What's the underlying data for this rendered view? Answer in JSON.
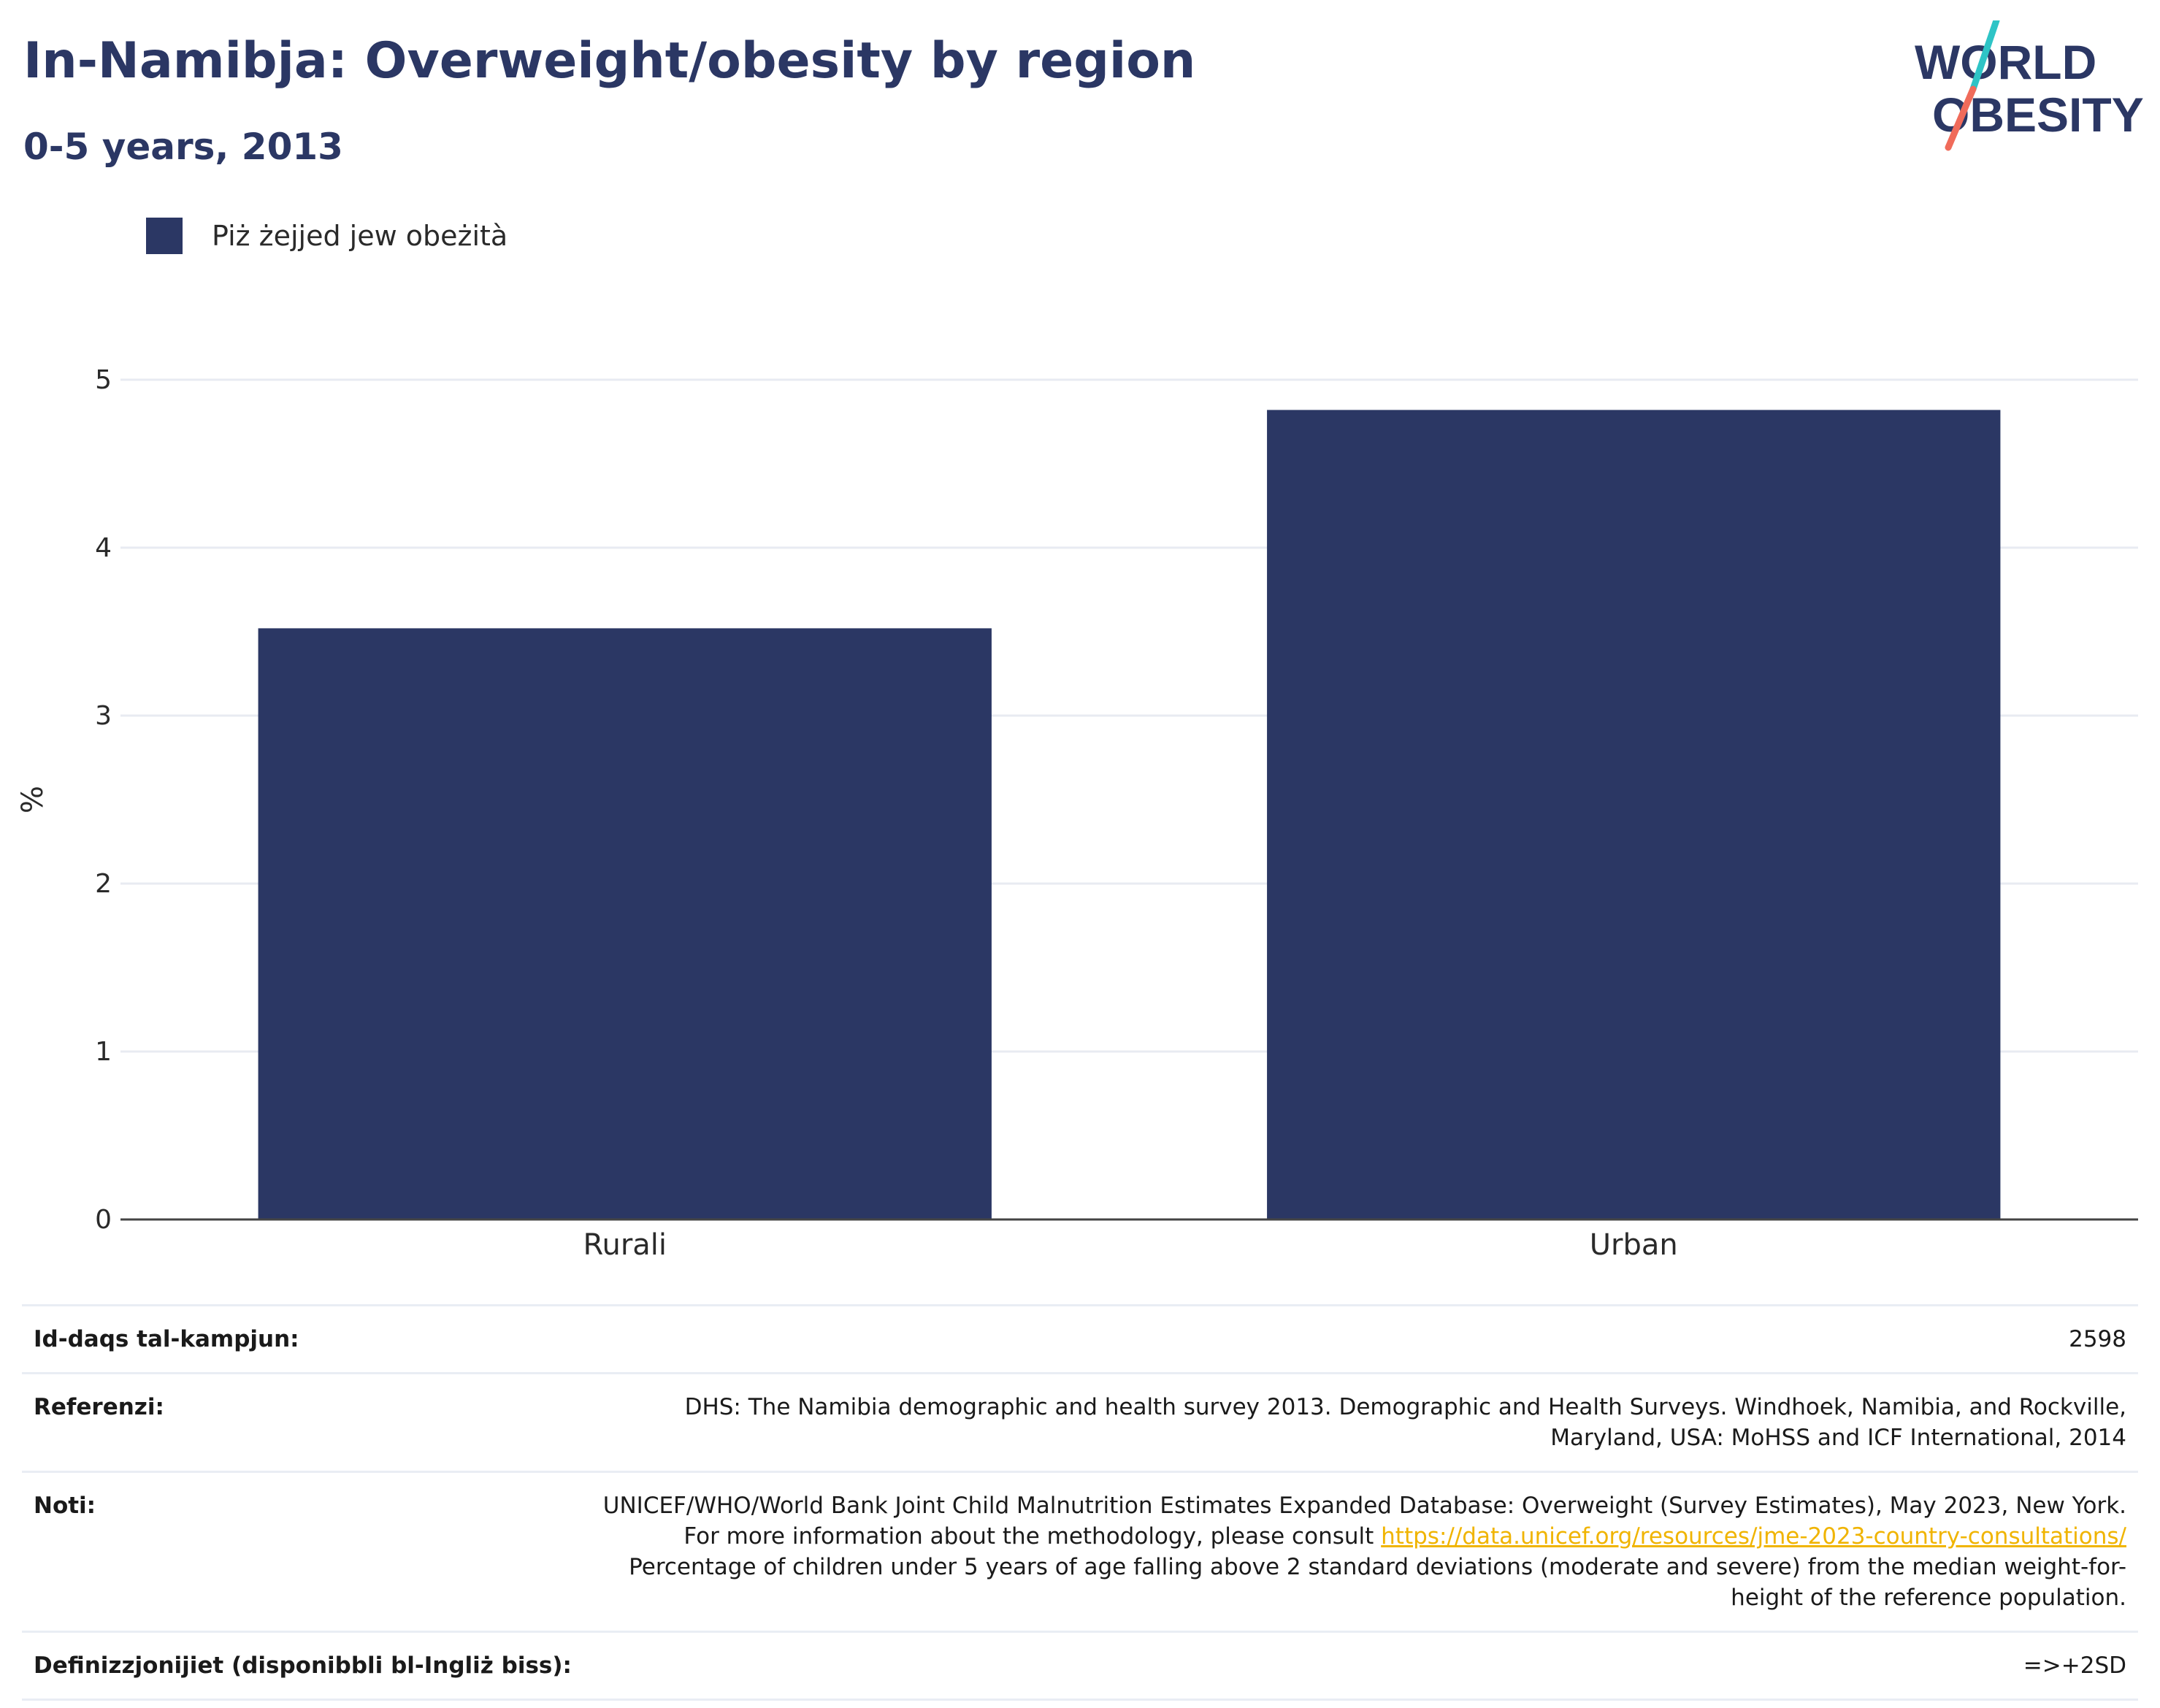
{
  "header": {
    "title": "In-Namibja: Overweight/obesity by region",
    "subtitle": "0-5 years, 2013"
  },
  "logo": {
    "line1": "WORLD",
    "line2": "OBESITY",
    "colors": {
      "text": "#2b3764",
      "slash_top": "#2ec4c6",
      "slash_bottom": "#f06b5a"
    }
  },
  "legend": {
    "label": "Piż żejjed jew obeżità",
    "color": "#2b3764"
  },
  "chart_data": {
    "type": "bar",
    "categories": [
      "Rurali",
      "Urban"
    ],
    "series": [
      {
        "name": "Piż żejjed jew obeżità",
        "values": [
          3.52,
          4.82
        ]
      }
    ],
    "ylabel": "%",
    "ylim": [
      0,
      5
    ],
    "yticks": [
      0,
      1,
      2,
      3,
      4,
      5
    ],
    "grid": true,
    "legend_position": "top-left",
    "colors": {
      "bar": "#2b3764",
      "grid": "#e8ebf2",
      "axis": "#444444"
    }
  },
  "info": {
    "sample_label": "Id-daqs tal-kampjun:",
    "sample_value": "2598",
    "references_label": "Referenzi:",
    "references_value": "DHS: The Namibia demographic and health survey 2013. Demographic and Health Surveys. Windhoek, Namibia, and Rockville, Maryland, USA: MoHSS and ICF International, 2014",
    "notes_label": "Noti:",
    "notes_text_1": "UNICEF/WHO/World Bank Joint Child Malnutrition Estimates Expanded Database: Overweight (Survey Estimates), May 2023, New York. For more information about the methodology, please consult",
    "notes_link": "https://data.unicef.org/resources/jme-2023-country-consultations/",
    "notes_text_2": "Percentage of children under 5 years of age falling above 2 standard deviations (moderate and severe) from the median weight-for-height of the reference population.",
    "definitions_label": "Definizzjonijiet (disponibbli bl-Ingliż biss):",
    "definitions_value": "=>+2SD"
  }
}
